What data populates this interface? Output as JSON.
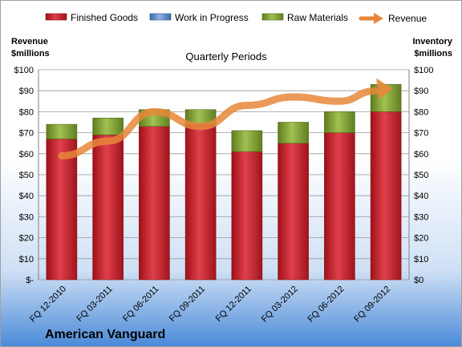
{
  "chart_data": {
    "type": "bar",
    "subtitle": "Quarterly Periods",
    "company": "American Vanguard",
    "left_axis_label": [
      "Revenue",
      "$millions"
    ],
    "right_axis_label": [
      "Inventory",
      "$millions"
    ],
    "categories": [
      "FQ 12-2010",
      "FQ 03-2011",
      "FQ 06-2011",
      "FQ 09-2011",
      "FQ 12-2011",
      "FQ 03-2012",
      "FQ 06-2012",
      "FQ 09-2012"
    ],
    "stacked": true,
    "ylim": [
      0,
      100
    ],
    "y_ticks_left": [
      "$-",
      "$10",
      "$20",
      "$30",
      "$40",
      "$50",
      "$60",
      "$70",
      "$80",
      "$90",
      "$100"
    ],
    "y_ticks_right": [
      "$0",
      "$10",
      "$20",
      "$30",
      "$40",
      "$50",
      "$60",
      "$70",
      "$80",
      "$90",
      "$100"
    ],
    "legend_position": "top",
    "series": [
      {
        "name": "Finished Goods",
        "values": [
          67,
          69,
          73,
          74,
          61,
          65,
          70,
          80
        ],
        "color": "#c0202a"
      },
      {
        "name": "Work in Progress",
        "values": [
          0,
          0,
          0,
          0,
          0,
          0,
          0,
          0
        ],
        "color": "#4f81bd"
      },
      {
        "name": "Raw Materials",
        "values": [
          7,
          8,
          8,
          7,
          10,
          10,
          10,
          13
        ],
        "color": "#7a9a30"
      }
    ],
    "line_series": {
      "name": "Revenue",
      "values": [
        59,
        66,
        80,
        73,
        83,
        87,
        85,
        91
      ],
      "color": "#e8873a",
      "style": "arrow"
    }
  }
}
